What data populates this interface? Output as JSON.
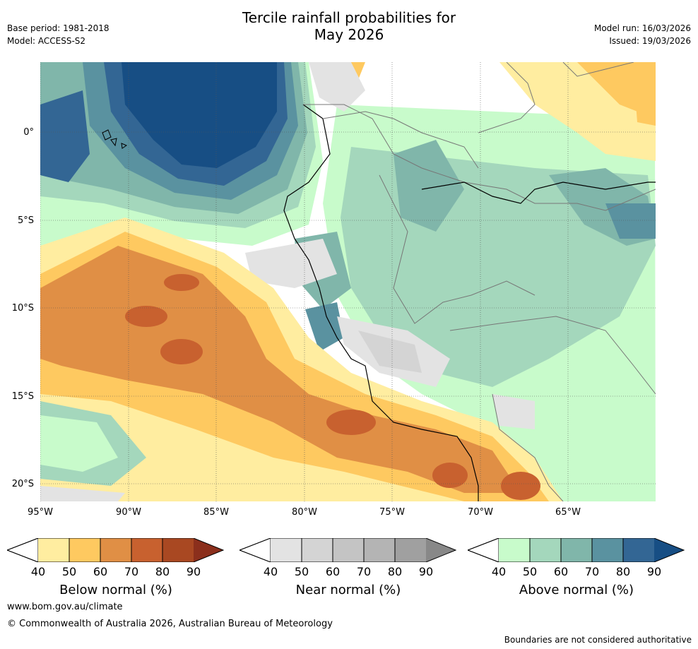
{
  "title_line1": "Tercile rainfall probabilities for",
  "title_line2": "May 2026",
  "base_period": "Base period: 1981-2018",
  "model": "Model: ACCESS-S2",
  "model_run": "Model run: 16/03/2026",
  "issued": "Issued: 19/03/2026",
  "lat_labels": [
    "0°",
    "5°S",
    "10°S",
    "15°S",
    "20°S"
  ],
  "lon_labels": [
    "95°W",
    "90°W",
    "85°W",
    "80°W",
    "75°W",
    "70°W",
    "65°W"
  ],
  "legends": [
    {
      "title": "Below normal (%)",
      "ticks": [
        "40",
        "50",
        "60",
        "70",
        "80",
        "90"
      ],
      "colors": [
        "#ffeda0",
        "#fec960",
        "#e08f45",
        "#c8612f",
        "#a94822",
        "#8b2f1c"
      ]
    },
    {
      "title": "Near normal (%)",
      "ticks": [
        "40",
        "50",
        "60",
        "70",
        "80",
        "90"
      ],
      "colors": [
        "#e3e3e3",
        "#d4d4d4",
        "#c4c4c4",
        "#b4b4b4",
        "#a0a0a0",
        "#888888"
      ]
    },
    {
      "title": "Above normal (%)",
      "ticks": [
        "40",
        "50",
        "60",
        "70",
        "80",
        "90"
      ],
      "colors": [
        "#c8fbcb",
        "#a4d7bc",
        "#80b6aa",
        "#5a92a0",
        "#336694",
        "#174e84"
      ]
    }
  ],
  "website": "www.bom.gov.au/climate",
  "copyright": "© Commonwealth of Australia 2026, Australian Bureau of Meteorology",
  "disclaimer": "Boundaries are not considered authoritative"
}
